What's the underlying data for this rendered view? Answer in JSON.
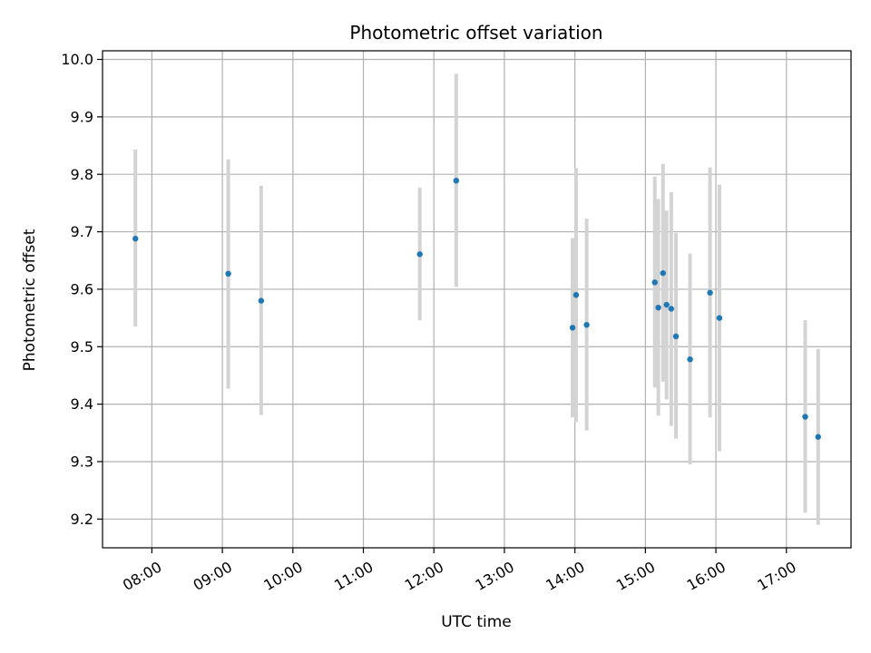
{
  "chart_data": {
    "type": "scatter",
    "title": "Photometric offset variation",
    "xlabel": "UTC time",
    "ylabel": "Photometric offset",
    "x_axis_type": "time",
    "xlim": [
      "07:18",
      "17:55"
    ],
    "ylim": [
      9.15,
      10.015
    ],
    "x_ticks": [
      "08:00",
      "09:00",
      "10:00",
      "11:00",
      "12:00",
      "13:00",
      "14:00",
      "15:00",
      "16:00",
      "17:00"
    ],
    "y_ticks": [
      9.2,
      9.3,
      9.4,
      9.5,
      9.6,
      9.7,
      9.8,
      9.9,
      10.0
    ],
    "y_tick_labels": [
      "9.2",
      "9.3",
      "9.4",
      "9.5",
      "9.6",
      "9.7",
      "9.8",
      "9.9",
      "10.0"
    ],
    "grid": true,
    "legend": "none",
    "colors": {
      "point": "#1f77b4",
      "errorbar": "#d3d3d3",
      "grid": "#b0b0b0"
    },
    "series": [
      {
        "points": [
          {
            "x": "07:46",
            "y": 9.688,
            "ylow": 9.535,
            "yhigh": 9.843
          },
          {
            "x": "09:05",
            "y": 9.627,
            "ylow": 9.427,
            "yhigh": 9.826
          },
          {
            "x": "09:33",
            "y": 9.58,
            "ylow": 9.381,
            "yhigh": 9.78
          },
          {
            "x": "11:48",
            "y": 9.661,
            "ylow": 9.546,
            "yhigh": 9.777
          },
          {
            "x": "12:19",
            "y": 9.789,
            "ylow": 9.604,
            "yhigh": 9.975
          },
          {
            "x": "13:58",
            "y": 9.533,
            "ylow": 9.377,
            "yhigh": 9.689
          },
          {
            "x": "14:01",
            "y": 9.59,
            "ylow": 9.369,
            "yhigh": 9.811
          },
          {
            "x": "14:10",
            "y": 9.538,
            "ylow": 9.354,
            "yhigh": 9.723
          },
          {
            "x": "15:08",
            "y": 9.612,
            "ylow": 9.429,
            "yhigh": 9.796
          },
          {
            "x": "15:11",
            "y": 9.568,
            "ylow": 9.38,
            "yhigh": 9.757
          },
          {
            "x": "15:15",
            "y": 9.628,
            "ylow": 9.439,
            "yhigh": 9.818
          },
          {
            "x": "15:18",
            "y": 9.573,
            "ylow": 9.408,
            "yhigh": 9.737
          },
          {
            "x": "15:22",
            "y": 9.566,
            "ylow": 9.362,
            "yhigh": 9.769
          },
          {
            "x": "15:26",
            "y": 9.518,
            "ylow": 9.34,
            "yhigh": 9.698
          },
          {
            "x": "15:38",
            "y": 9.478,
            "ylow": 9.295,
            "yhigh": 9.662
          },
          {
            "x": "15:55",
            "y": 9.594,
            "ylow": 9.377,
            "yhigh": 9.812
          },
          {
            "x": "16:03",
            "y": 9.55,
            "ylow": 9.318,
            "yhigh": 9.782
          },
          {
            "x": "17:16",
            "y": 9.378,
            "ylow": 9.211,
            "yhigh": 9.546
          },
          {
            "x": "17:27",
            "y": 9.343,
            "ylow": 9.19,
            "yhigh": 9.496
          }
        ]
      }
    ]
  }
}
